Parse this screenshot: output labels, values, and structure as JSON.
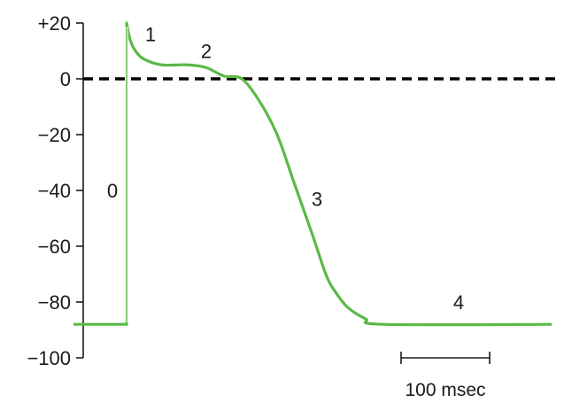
{
  "chart_data": {
    "type": "line",
    "title": "",
    "xlabel": "",
    "ylabel": "",
    "ylim": [
      -100,
      20
    ],
    "y_ticks": [
      20,
      0,
      -20,
      -40,
      -60,
      -80,
      -100
    ],
    "y_tick_labels": [
      "+20",
      "0",
      "−20",
      "−40",
      "−60",
      "−80",
      "−100"
    ],
    "x_units": "msec",
    "grid": false,
    "reference_line": {
      "y": 0,
      "style": "dashed",
      "color": "#000000"
    },
    "series": [
      {
        "color": "#5cb946",
        "points": [
          {
            "x": -60,
            "y": -88
          },
          {
            "x": 0,
            "y": -88
          },
          {
            "x": 0,
            "y": 20
          },
          {
            "x": 4,
            "y": 14
          },
          {
            "x": 10,
            "y": 10
          },
          {
            "x": 20,
            "y": 7
          },
          {
            "x": 40,
            "y": 5
          },
          {
            "x": 70,
            "y": 5
          },
          {
            "x": 90,
            "y": 4
          },
          {
            "x": 110,
            "y": 1
          },
          {
            "x": 130,
            "y": 0
          },
          {
            "x": 150,
            "y": -8
          },
          {
            "x": 170,
            "y": -20
          },
          {
            "x": 190,
            "y": -38
          },
          {
            "x": 210,
            "y": -56
          },
          {
            "x": 225,
            "y": -70
          },
          {
            "x": 235,
            "y": -76
          },
          {
            "x": 250,
            "y": -82
          },
          {
            "x": 270,
            "y": -86
          },
          {
            "x": 290,
            "y": -88
          },
          {
            "x": 480,
            "y": -88
          }
        ]
      }
    ],
    "phase_labels": [
      {
        "text": "0",
        "x": -16,
        "y": -40
      },
      {
        "text": "1",
        "x": 27,
        "y": 16
      },
      {
        "text": "2",
        "x": 90,
        "y": 10
      },
      {
        "text": "3",
        "x": 215,
        "y": -43
      },
      {
        "text": "4",
        "x": 375,
        "y": -80
      }
    ],
    "scale_bar": {
      "label": "100 msec",
      "start": 310,
      "end": 410
    }
  }
}
